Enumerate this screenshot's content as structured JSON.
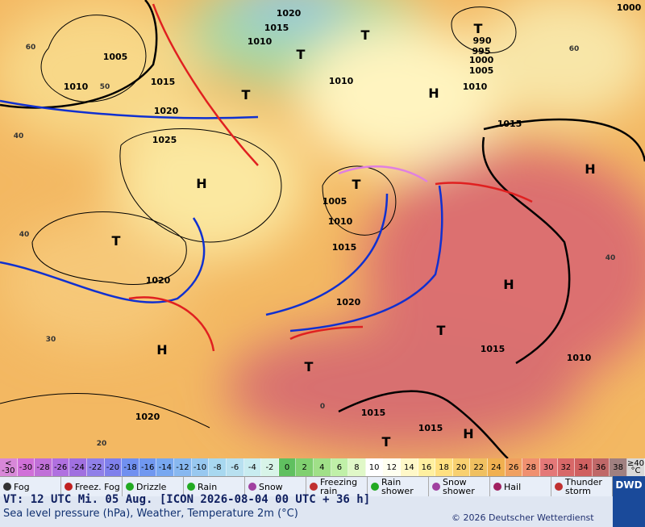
{
  "map": {
    "corner_label": "1000",
    "pressure_labels": [
      1020,
      1015,
      1010,
      1005,
      1010,
      1015,
      1020,
      1025,
      1010,
      990,
      995,
      1000,
      1005,
      1010,
      1015,
      1005,
      1010,
      1015,
      1020,
      1020,
      1015,
      1010,
      1015,
      1015,
      1020
    ],
    "systems": [
      "H",
      "H",
      "H",
      "H",
      "H",
      "H",
      "T",
      "T",
      "T",
      "T",
      "T",
      "T",
      "T",
      "T",
      "T"
    ],
    "isotherm_labels": [
      60,
      50,
      40,
      40,
      30,
      20,
      60,
      40,
      0
    ]
  },
  "color_scale": [
    {
      "label": "< -30",
      "color": "#d888d8"
    },
    {
      "label": -30,
      "color": "#d070d8"
    },
    {
      "label": -28,
      "color": "#c070d8"
    },
    {
      "label": -26,
      "color": "#b070e0"
    },
    {
      "label": -24,
      "color": "#a070e0"
    },
    {
      "label": -22,
      "color": "#9080e8"
    },
    {
      "label": -20,
      "color": "#7f80ec"
    },
    {
      "label": -18,
      "color": "#7090f0"
    },
    {
      "label": -16,
      "color": "#7098f0"
    },
    {
      "label": -14,
      "color": "#78a8f0"
    },
    {
      "label": -12,
      "color": "#88b8f0"
    },
    {
      "label": -10,
      "color": "#98c8f0"
    },
    {
      "label": -8,
      "color": "#a8d8f0"
    },
    {
      "label": -6,
      "color": "#b8e0f0"
    },
    {
      "label": -4,
      "color": "#c8ecf0"
    },
    {
      "label": -2,
      "color": "#d8f4e8"
    },
    {
      "label": 0,
      "color": "#60c060"
    },
    {
      "label": 2,
      "color": "#80d070"
    },
    {
      "label": 4,
      "color": "#a0e088"
    },
    {
      "label": 6,
      "color": "#c0f0a8"
    },
    {
      "label": 8,
      "color": "#e0f8c8"
    },
    {
      "label": 10,
      "color": "#ffffff"
    },
    {
      "label": 12,
      "color": "#fffff0"
    },
    {
      "label": 14,
      "color": "#fff8c8"
    },
    {
      "label": 16,
      "color": "#fff0a0"
    },
    {
      "label": 18,
      "color": "#ffe080"
    },
    {
      "label": 20,
      "color": "#f8d070"
    },
    {
      "label": 22,
      "color": "#f0c060"
    },
    {
      "label": 24,
      "color": "#f0b050"
    },
    {
      "label": 26,
      "color": "#f0a060"
    },
    {
      "label": 28,
      "color": "#f09070"
    },
    {
      "label": 30,
      "color": "#e47878"
    },
    {
      "label": 32,
      "color": "#d86868"
    },
    {
      "label": 34,
      "color": "#d06060"
    },
    {
      "label": 36,
      "color": "#c06868"
    },
    {
      "label": 38,
      "color": "#a08080"
    },
    {
      "label": "≥40 °C",
      "color": "#d8d8d8"
    }
  ],
  "weather_legend": [
    {
      "label": "Fog"
    },
    {
      "label": "Freez. Fog"
    },
    {
      "label": "Drizzle"
    },
    {
      "label": "Rain"
    },
    {
      "label": "Snow"
    },
    {
      "label": "Freezing rain"
    },
    {
      "label": "Rain shower"
    },
    {
      "label": "Snow shower"
    },
    {
      "label": "Hail"
    },
    {
      "label": "Thunder storm"
    }
  ],
  "footer": {
    "valid_time": "VT: 12 UTC Mi.  05 Aug. [ICON 2026-08-04  00 UTC + 36 h]",
    "description": "Sea level pressure (hPa), Weather, Temperature 2m (°C)",
    "copyright": "© 2026 Deutscher Wetterdienst",
    "logo": "DWD"
  }
}
